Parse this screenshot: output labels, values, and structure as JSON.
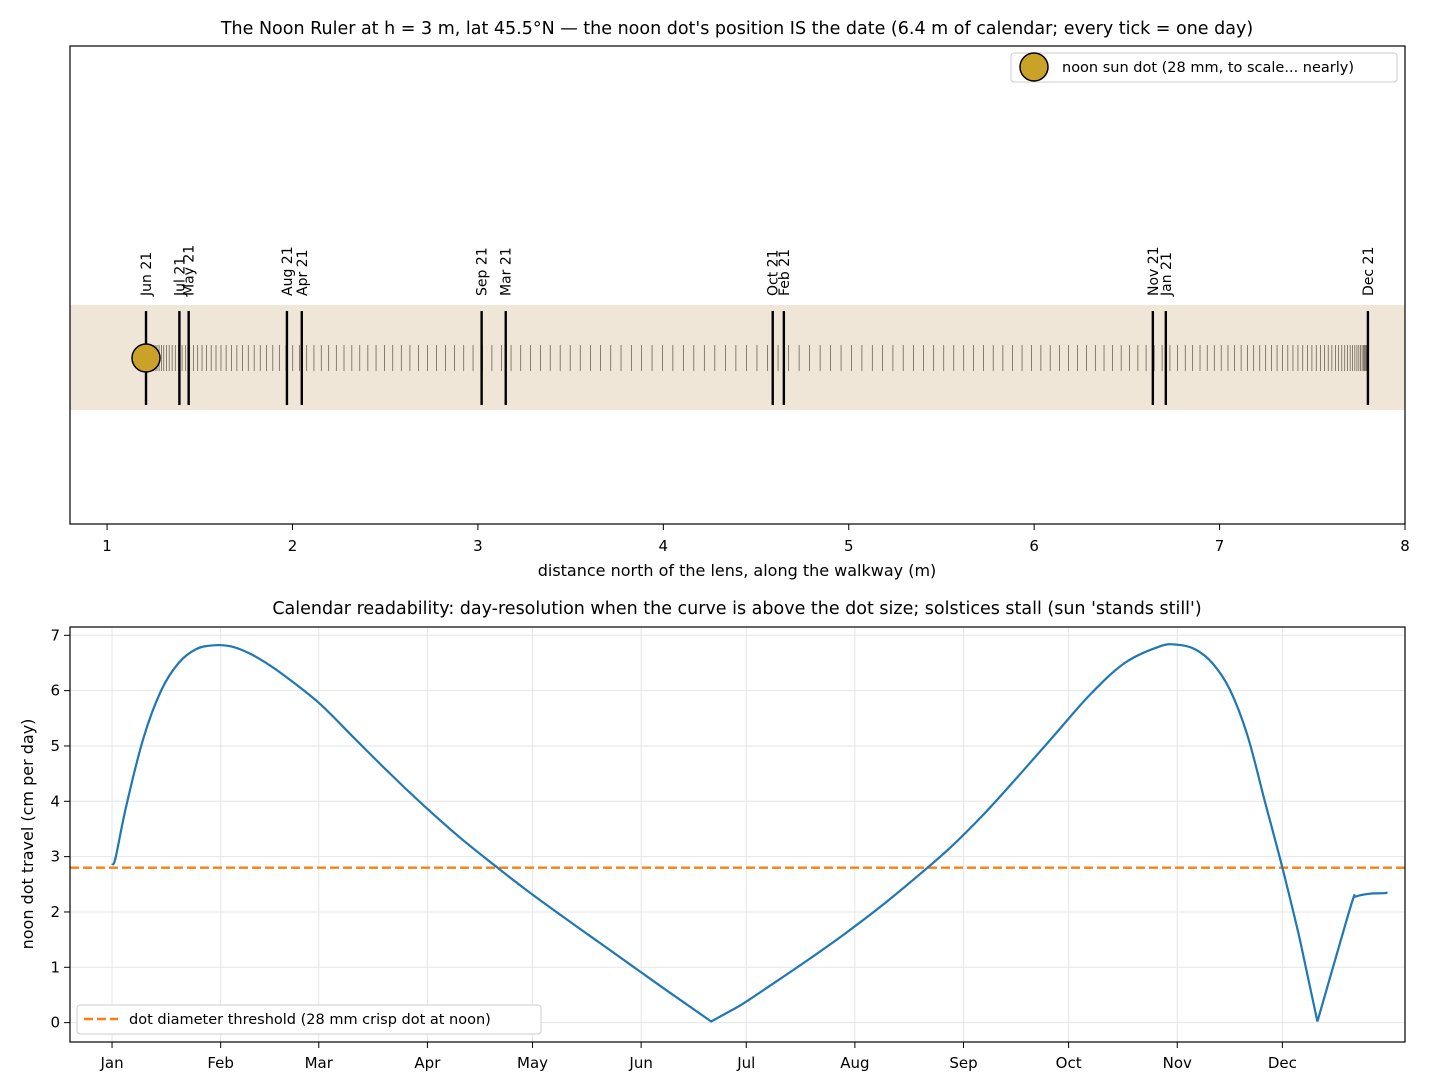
{
  "chart_data": [
    {
      "type": "scatter",
      "title": "The Noon Ruler at h = 3 m, lat 45.5°N — the noon dot's position IS the date (6.4 m of calendar; every tick = one day)",
      "xlabel": "distance north of the lens, along the walkway (m)",
      "ylabel": "",
      "xlim": [
        0.8,
        8.0
      ],
      "x_ticks": [
        1,
        2,
        3,
        4,
        5,
        6,
        7,
        8
      ],
      "grid": false,
      "legend_position": "top-right",
      "ruler_range": [
        1.21,
        7.8
      ],
      "date_marks": [
        {
          "label": "Jun 21",
          "x": 1.21
        },
        {
          "label": "Jul 21",
          "x": 1.39
        },
        {
          "label": "May 21",
          "x": 1.44
        },
        {
          "label": "Aug 21",
          "x": 1.97
        },
        {
          "label": "Apr 21",
          "x": 2.05
        },
        {
          "label": "Sep 21",
          "x": 3.02
        },
        {
          "label": "Mar 21",
          "x": 3.15
        },
        {
          "label": "Oct 21",
          "x": 4.59
        },
        {
          "label": "Feb 21",
          "x": 4.65
        },
        {
          "label": "Nov 21",
          "x": 6.64
        },
        {
          "label": "Jan 21",
          "x": 6.71
        },
        {
          "label": "Dec 21",
          "x": 7.8
        }
      ],
      "sun_dot": {
        "x": 1.21,
        "label": "noon sun dot (28 mm, to scale... nearly)",
        "color": "#c9a227"
      },
      "band_color": "#f0e6d8",
      "tick_color": "#5a5040"
    },
    {
      "type": "line",
      "title": "Calendar readability: day-resolution when the curve is above the dot size; solstices stall (sun 'stands still')",
      "xlabel": "",
      "ylabel": "noon dot travel (cm per day)",
      "xlim": [
        -11,
        370
      ],
      "ylim": [
        -0.35,
        7.15
      ],
      "month_ticks": [
        "Jan",
        "Feb",
        "Mar",
        "Apr",
        "May",
        "Jun",
        "Jul",
        "Aug",
        "Sep",
        "Oct",
        "Nov",
        "Dec"
      ],
      "month_tick_days": [
        1,
        32,
        60,
        91,
        121,
        152,
        182,
        213,
        244,
        274,
        305,
        335
      ],
      "y_ticks": [
        0,
        1,
        2,
        3,
        4,
        5,
        6,
        7
      ],
      "grid": true,
      "legend_position": "bottom-left",
      "series": [
        {
          "color": "#1f77b4",
          "x": [
            1,
            2,
            5,
            10,
            15,
            20,
            25,
            30,
            35,
            40,
            45,
            50,
            60,
            70,
            80,
            90,
            100,
            110,
            120,
            130,
            140,
            150,
            160,
            172,
            180,
            190,
            200,
            210,
            220,
            230,
            240,
            250,
            260,
            270,
            280,
            290,
            300,
            305,
            310,
            315,
            320,
            325,
            330,
            335,
            340,
            345,
            350,
            355,
            356,
            360,
            364,
            365
          ],
          "y": [
            2.85,
            2.98,
            3.9,
            5.15,
            6.0,
            6.5,
            6.75,
            6.82,
            6.8,
            6.68,
            6.5,
            6.28,
            5.78,
            5.15,
            4.52,
            3.92,
            3.36,
            2.85,
            2.36,
            1.9,
            1.45,
            1.0,
            0.55,
            0.02,
            0.3,
            0.72,
            1.15,
            1.6,
            2.08,
            2.6,
            3.15,
            3.78,
            4.48,
            5.2,
            5.92,
            6.5,
            6.8,
            6.83,
            6.75,
            6.5,
            6.02,
            5.2,
            4.0,
            2.8,
            1.5,
            0.02,
            1.12,
            2.2,
            2.28,
            2.33,
            2.34,
            2.35
          ]
        }
      ],
      "threshold": {
        "y": 2.8,
        "label": "dot diameter threshold (28 mm crisp dot at noon)",
        "color": "#ff7f0e"
      }
    }
  ]
}
